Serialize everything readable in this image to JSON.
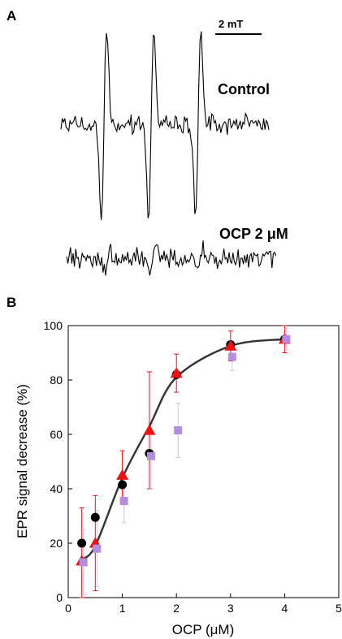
{
  "panel_a": {
    "letter": "A",
    "scale_bar_label": "2 mT",
    "control_label": "Control",
    "ocp_label": "OCP 2 μM"
  },
  "panel_b": {
    "letter": "B"
  },
  "chart_data": {
    "type": "scatter",
    "xlabel": "OCP (μM)",
    "ylabel": "EPR signal decrease (%)",
    "xlim": [
      0,
      5
    ],
    "ylim": [
      0,
      100
    ],
    "xticks": [
      0,
      1,
      2,
      3,
      4,
      5
    ],
    "yticks": [
      0,
      20,
      40,
      60,
      80,
      100
    ],
    "grid": false,
    "series": [
      {
        "marker": "circle",
        "color": "#000000",
        "x": [
          0.25,
          0.5,
          1,
          1.5,
          2,
          3,
          4
        ],
        "y": [
          20,
          29.5,
          41.5,
          53,
          82,
          93,
          95
        ]
      },
      {
        "marker": "triangle",
        "color": "#ee1111",
        "x": [
          0.25,
          0.5,
          1,
          1.5,
          2,
          3,
          4
        ],
        "y": [
          13.5,
          20,
          45,
          61.5,
          82.5,
          92.5,
          95
        ],
        "err": [
          19.5,
          17.5,
          9,
          21.5,
          7,
          5.5,
          5
        ]
      },
      {
        "marker": "square",
        "color": "#b38ee0",
        "x": [
          0.25,
          0.5,
          1,
          1.5,
          2,
          3,
          4
        ],
        "y": [
          13,
          18,
          35.5,
          52,
          61.5,
          88.5,
          95
        ],
        "err": [
          12,
          14,
          8,
          12,
          10,
          5,
          4
        ]
      },
      {
        "type": "line",
        "style": "smooth fit curve",
        "color": "#333333",
        "x": [
          0.25,
          0.5,
          1,
          1.5,
          2,
          3,
          4
        ],
        "y": [
          14,
          19,
          44,
          63,
          81,
          92.5,
          95
        ]
      }
    ]
  }
}
